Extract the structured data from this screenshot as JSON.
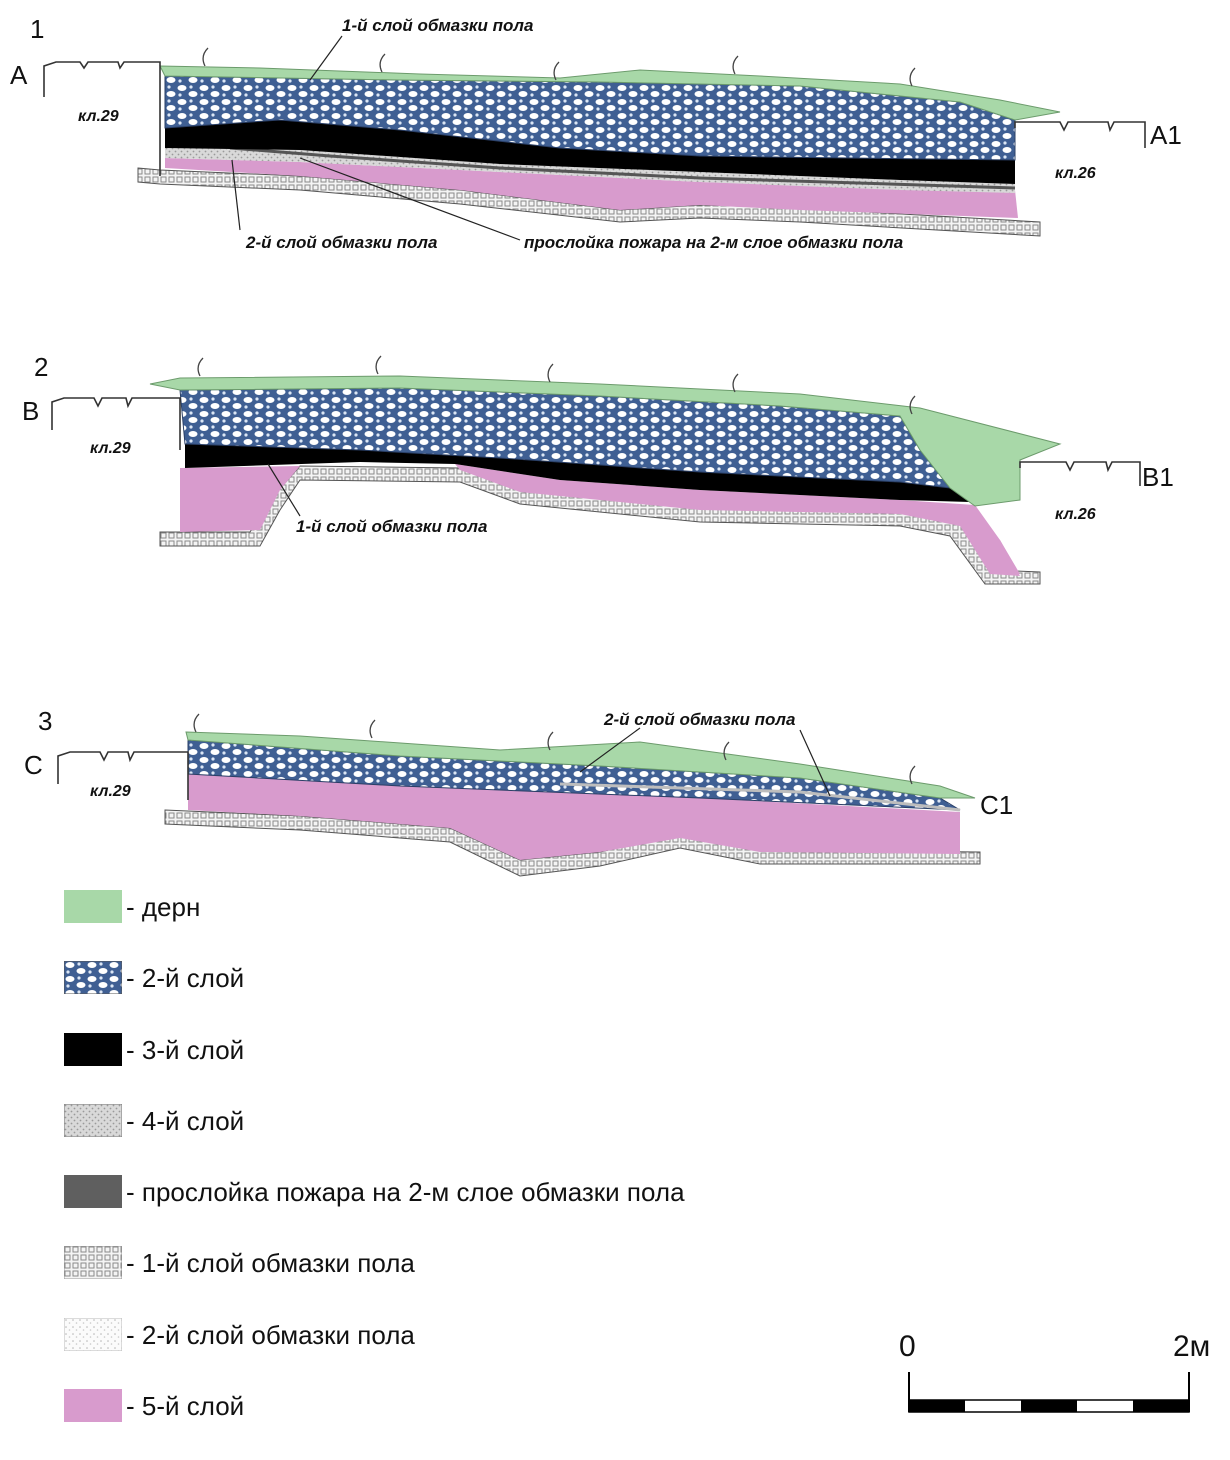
{
  "sections": [
    {
      "number": "1",
      "start_label": "А",
      "end_label": "А1",
      "left_marker": "кл.29",
      "right_marker": "кл.26",
      "annotations": [
        "1-й слой обмазки пола",
        "2-й слой обмазки пола",
        "прослойка пожара на 2-м слое обмазки пола"
      ]
    },
    {
      "number": "2",
      "start_label": "В",
      "end_label": "В1",
      "left_marker": "кл.29",
      "right_marker": "кл.26",
      "annotations": [
        "1-й слой обмазки пола"
      ]
    },
    {
      "number": "3",
      "start_label": "С",
      "end_label": "С1",
      "left_marker": "кл.29",
      "annotations": [
        "2-й слой обмазки пола"
      ]
    }
  ],
  "legend": [
    {
      "label": "- дерн",
      "swatch": "turf",
      "color": "#a8d8a8"
    },
    {
      "label": "- 2-й слой",
      "swatch": "layer2",
      "color": "#3f5f93"
    },
    {
      "label": "- 3-й слой",
      "swatch": "layer3",
      "color": "#000000"
    },
    {
      "label": "- 4-й слой",
      "swatch": "layer4",
      "color": "#d6d6d6"
    },
    {
      "label": "- прослойка пожара на 2-м слое обмазки пола",
      "swatch": "fire",
      "color": "#5f5f5f"
    },
    {
      "label": "- 1-й слой обмазки пола",
      "swatch": "floor1",
      "color": "#ececec"
    },
    {
      "label": "- 2-й слой обмазки пола",
      "swatch": "floor2",
      "color": "#f2f2f2"
    },
    {
      "label": "- 5-й слой",
      "swatch": "layer5",
      "color": "#d89bcd"
    }
  ],
  "scale_bar": {
    "start": "0",
    "end": "2м"
  }
}
